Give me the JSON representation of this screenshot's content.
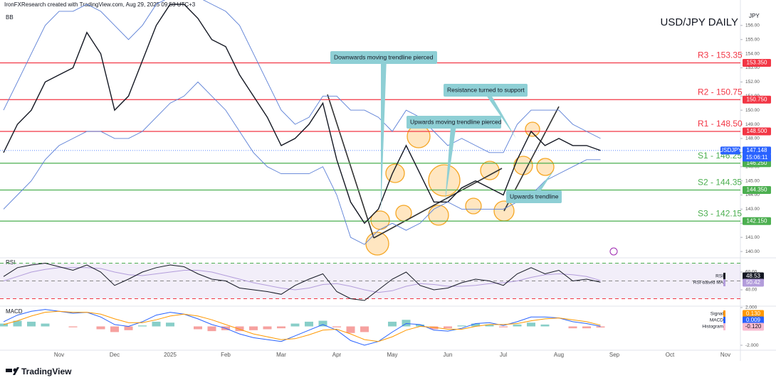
{
  "header": {
    "source": "IronFXResearch created with TradingView.com, Aug 29, 2025 09:53 UTC+3",
    "footer": "TradingView"
  },
  "chart_data": [
    {
      "type": "line",
      "title": "USD/JPY DAILY",
      "indicator": "BB",
      "currency": "JPY",
      "countdown": "15:06:11",
      "categories": [
        null,
        null,
        null,
        null,
        "Nov",
        null,
        null,
        null,
        "Dec",
        null,
        null,
        null,
        "2025",
        null,
        null,
        null,
        "Feb",
        null,
        null,
        null,
        "Mar",
        null,
        null,
        null,
        "Apr",
        null,
        null,
        null,
        "May",
        null,
        null,
        null,
        "Jun",
        null,
        null,
        null,
        "Jul",
        null,
        null,
        null,
        "Aug",
        null,
        null,
        null,
        "Sep",
        null,
        null,
        null,
        "Oct",
        null,
        null,
        null,
        "Nov"
      ],
      "series": [
        {
          "name": "USDJPY",
          "color": "#131722",
          "values": [
            147.0,
            149.0,
            150.0,
            152.0,
            152.5,
            153.0,
            155.5,
            154.0,
            150.0,
            151.0,
            153.5,
            156.0,
            157.5,
            157.5,
            156.5,
            155.0,
            154.5,
            152.5,
            151.0,
            149.5,
            147.5,
            148.0,
            149.0,
            150.5,
            146.5,
            143.5,
            142.0,
            143.0,
            145.5,
            147.5,
            145.5,
            143.5,
            143.5,
            144.5,
            145.0,
            144.5,
            144.0,
            146.5,
            148.5,
            147.5,
            148.0,
            147.5,
            147.5,
            147.148,
            null,
            null,
            null,
            null,
            null,
            null,
            null,
            null,
            null
          ]
        },
        {
          "color": "#5b7fd6",
          "values": [
            150,
            152,
            154,
            156,
            157,
            157,
            157.5,
            157,
            156,
            155,
            156,
            157.5,
            158,
            158,
            158,
            157.5,
            157,
            156,
            154,
            152,
            150,
            149,
            149.5,
            151,
            151,
            150,
            150,
            149.5,
            148.5,
            150,
            149.5,
            148.5,
            147.5,
            148,
            147.5,
            147,
            147,
            149,
            150,
            150,
            150,
            149,
            148.5,
            148,
            null,
            null,
            null,
            null,
            null,
            null,
            null,
            null,
            null
          ]
        },
        {
          "color": "#5b7fd6",
          "values": [
            143,
            144,
            145,
            146.5,
            147.5,
            148,
            148.5,
            148.5,
            148,
            148,
            148.5,
            149.5,
            150.5,
            151,
            152,
            151,
            150,
            148.5,
            147,
            146,
            145.5,
            145.5,
            145.5,
            146,
            144,
            141,
            140.5,
            141.5,
            142,
            141.5,
            142,
            143,
            143.5,
            143,
            143,
            143,
            143,
            143.5,
            144,
            145,
            145.5,
            146,
            146.5,
            146.5,
            null,
            null,
            null,
            null,
            null,
            null,
            null,
            null,
            null
          ]
        }
      ],
      "levels": [
        {
          "label": "R3 - 153.35",
          "value": 153.35,
          "tag": "153.350",
          "color": "#f23645"
        },
        {
          "label": "R2 - 150.75",
          "value": 150.75,
          "tag": "150.750",
          "color": "#f23645"
        },
        {
          "label": "R1 - 148.50",
          "value": 148.5,
          "tag": "148.500",
          "color": "#f23645"
        },
        {
          "label": "S1 - 146.25",
          "value": 146.25,
          "tag": "146.250",
          "color": "#4caf50"
        },
        {
          "label": "S2 - 144.35",
          "value": 144.35,
          "tag": "144.350",
          "color": "#4caf50"
        },
        {
          "label": "S3 - 142.15",
          "value": 142.15,
          "tag": "142.150",
          "color": "#4caf50"
        }
      ],
      "annotations": [
        "Downwards moving trendline pierced",
        "Resistance turned to support",
        "Upwards moving trendline pierced",
        "Upwards trendline"
      ],
      "ylim": [
        139.6,
        157.8
      ],
      "yticks": [
        {
          "value": 140,
          "label": "140.00"
        },
        {
          "value": 141,
          "label": "141.00"
        },
        {
          "value": 142,
          "label": "142.00"
        },
        {
          "value": 143,
          "label": "143.00"
        },
        {
          "value": 144,
          "label": "144.00"
        },
        {
          "value": 145,
          "label": "145.00"
        },
        {
          "value": 146,
          "label": "146.00"
        },
        {
          "value": 147,
          "label": "147.00"
        },
        {
          "value": 148,
          "label": "148.00"
        },
        {
          "value": 149,
          "label": "149.00"
        },
        {
          "value": 150,
          "label": "150.00"
        },
        {
          "value": 151,
          "label": "151.00"
        },
        {
          "value": 152,
          "label": "152.00"
        },
        {
          "value": 153,
          "label": "153.00"
        },
        {
          "value": 154,
          "label": "154.00"
        },
        {
          "value": 155,
          "label": "155.00"
        },
        {
          "value": 156,
          "label": "156.00"
        }
      ]
    },
    {
      "type": "line",
      "title": "RSI",
      "levels": [
        70,
        50,
        30
      ],
      "series": [
        {
          "name": "RSI",
          "color": "#131722",
          "values": [
            55,
            65,
            68,
            70,
            66,
            62,
            68,
            60,
            45,
            52,
            60,
            65,
            68,
            66,
            58,
            52,
            50,
            42,
            40,
            38,
            35,
            45,
            52,
            58,
            38,
            30,
            28,
            40,
            52,
            60,
            45,
            40,
            42,
            48,
            52,
            50,
            45,
            58,
            65,
            58,
            62,
            50,
            52,
            48.53,
            null,
            null,
            null,
            null,
            null,
            null,
            null,
            null,
            null
          ]
        },
        {
          "name": "RSI-based MA",
          "color": "#b39ddb",
          "values": [
            50,
            55,
            60,
            63,
            65,
            65,
            65,
            64,
            60,
            57,
            56,
            58,
            60,
            62,
            62,
            60,
            56,
            52,
            48,
            45,
            42,
            40,
            42,
            46,
            47,
            44,
            40,
            37,
            39,
            44,
            47,
            46,
            44,
            44,
            45,
            47,
            48,
            50,
            54,
            57,
            58,
            57,
            55,
            50.42,
            null,
            null,
            null,
            null,
            null,
            null,
            null,
            null,
            null
          ]
        }
      ],
      "ylim": [
        22.4,
        74.4
      ],
      "yticks": [
        {
          "value": 40,
          "label": "40.00"
        },
        {
          "value": 60,
          "label": "60.00"
        }
      ]
    },
    {
      "type": "macd",
      "title": "MACD",
      "series": [
        {
          "name": "Histogram",
          "kind": "bar",
          "color": "#26a69a",
          "negative_color": "#ef5350",
          "last_label": "-0.120",
          "values": [
            0.3,
            0.6,
            0.5,
            0.3,
            0,
            -0.1,
            0,
            -0.3,
            -0.6,
            -0.4,
            0.1,
            0.5,
            0.4,
            0,
            -0.3,
            -0.5,
            -0.4,
            -0.5,
            -0.4,
            -0.3,
            -0.2,
            0.3,
            0.5,
            0.6,
            -0.1,
            -0.7,
            -0.6,
            0,
            0.5,
            0.7,
            0.2,
            -0.3,
            -0.2,
            0.1,
            0.3,
            0.2,
            -0.1,
            0.2,
            0.4,
            0.2,
            0,
            -0.2,
            -0.2,
            -0.12,
            null,
            null,
            null,
            null,
            null,
            null,
            null,
            null,
            null
          ]
        },
        {
          "name": "MACD",
          "kind": "line",
          "color": "#2962ff",
          "last_label": "0.009",
          "values": [
            0.5,
            1.2,
            1.6,
            1.8,
            1.6,
            1.4,
            1.5,
            1.0,
            0.2,
            0,
            0.5,
            1.2,
            1.5,
            1.3,
            0.8,
            0.2,
            -0.2,
            -0.8,
            -1.2,
            -1.4,
            -1.6,
            -1.0,
            -0.4,
            0.2,
            -0.4,
            -1.5,
            -2.0,
            -1.6,
            -0.6,
            0.3,
            0.2,
            -0.4,
            -0.5,
            -0.2,
            0.3,
            0.4,
            0.1,
            0.5,
            1.0,
            1.0,
            0.9,
            0.5,
            0.3,
            0.009,
            null,
            null,
            null,
            null,
            null,
            null,
            null,
            null,
            null
          ]
        },
        {
          "name": "Signal",
          "kind": "line",
          "color": "#ff9800",
          "last_label": "0.130",
          "values": [
            0.2,
            0.6,
            1.1,
            1.5,
            1.6,
            1.5,
            1.5,
            1.3,
            0.8,
            0.4,
            0.4,
            0.7,
            1.1,
            1.3,
            1.1,
            0.7,
            0.2,
            -0.3,
            -0.8,
            -1.1,
            -1.4,
            -1.3,
            -0.9,
            -0.4,
            -0.3,
            -0.8,
            -1.4,
            -1.6,
            -1.1,
            -0.4,
            0.0,
            -0.1,
            -0.3,
            -0.3,
            0.0,
            0.2,
            0.2,
            0.3,
            0.6,
            0.8,
            0.9,
            0.7,
            0.5,
            0.13,
            null,
            null,
            null,
            null,
            null,
            null,
            null,
            null,
            null
          ]
        }
      ],
      "ylim": [
        -2.45,
        2.075
      ],
      "yticks": [
        {
          "value": 2,
          "label": "2.000"
        },
        {
          "value": -2,
          "label": "-2.000"
        }
      ]
    }
  ]
}
